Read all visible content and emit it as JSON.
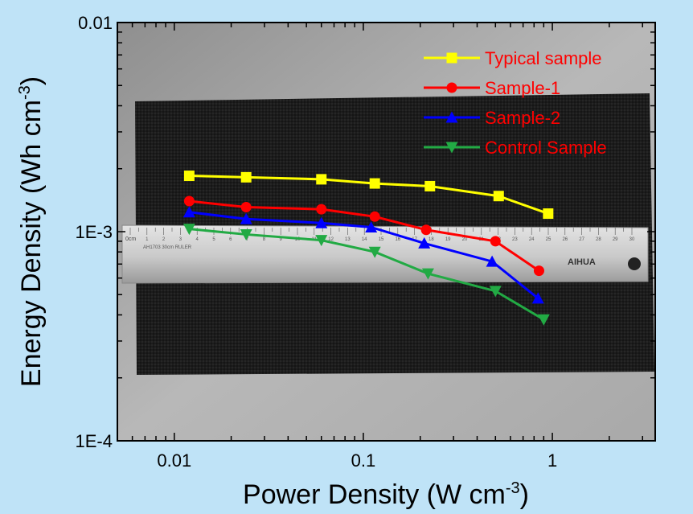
{
  "chart_data": {
    "type": "line",
    "title": "",
    "xlabel": "Power Density (W cm",
    "xlabel_sup": "-3",
    "xlabel_tail": ")",
    "ylabel": "Energy Density (Wh cm",
    "ylabel_sup": "-3",
    "ylabel_tail": ")",
    "x_scale": "log",
    "y_scale": "log",
    "xlim": [
      0.005,
      3.5
    ],
    "ylim": [
      0.0001,
      0.01
    ],
    "x_ticks": [
      {
        "value": 0.01,
        "label": "0.01"
      },
      {
        "value": 0.1,
        "label": "0.1"
      },
      {
        "value": 1,
        "label": "1"
      }
    ],
    "y_ticks": [
      {
        "value": 0.0001,
        "label": "1E-4"
      },
      {
        "value": 0.001,
        "label": "1E-3"
      },
      {
        "value": 0.01,
        "label": "0.01"
      }
    ],
    "legend_placement": "top-right",
    "legend_color": "#ff0000",
    "background_photo": "carbon cloth with ruler",
    "ruler_marks": [
      "0cm",
      "AH1703 30cm RULER",
      "AIHUA",
      "1",
      "2",
      "3",
      "4",
      "5",
      "6",
      "7",
      "8",
      "9",
      "10",
      "11",
      "12",
      "13",
      "14",
      "15",
      "16",
      "17",
      "18",
      "19",
      "20",
      "21",
      "22",
      "23",
      "24",
      "25",
      "26",
      "27",
      "28",
      "29",
      "30"
    ],
    "series": [
      {
        "name": "Typical sample",
        "color": "#ffff00",
        "marker": "square",
        "x": [
          0.012,
          0.024,
          0.06,
          0.115,
          0.225,
          0.52,
          0.95
        ],
        "y": [
          0.00185,
          0.00182,
          0.00178,
          0.0017,
          0.00165,
          0.00148,
          0.00122
        ]
      },
      {
        "name": "Sample-1",
        "color": "#ff0000",
        "marker": "circle",
        "x": [
          0.012,
          0.024,
          0.06,
          0.115,
          0.215,
          0.5,
          0.85
        ],
        "y": [
          0.0014,
          0.00131,
          0.00128,
          0.00118,
          0.00102,
          0.0009,
          0.00065
        ]
      },
      {
        "name": "Sample-2",
        "color": "#0000ff",
        "marker": "triangle-up",
        "x": [
          0.012,
          0.024,
          0.06,
          0.11,
          0.21,
          0.48,
          0.84
        ],
        "y": [
          0.00124,
          0.00115,
          0.0011,
          0.00105,
          0.00088,
          0.00072,
          0.00048
        ]
      },
      {
        "name": "Control Sample",
        "color": "#22aa44",
        "marker": "triangle-down",
        "x": [
          0.012,
          0.024,
          0.06,
          0.115,
          0.22,
          0.5,
          0.9
        ],
        "y": [
          0.00103,
          0.00097,
          0.00091,
          0.0008,
          0.00063,
          0.00052,
          0.00038
        ]
      }
    ]
  }
}
